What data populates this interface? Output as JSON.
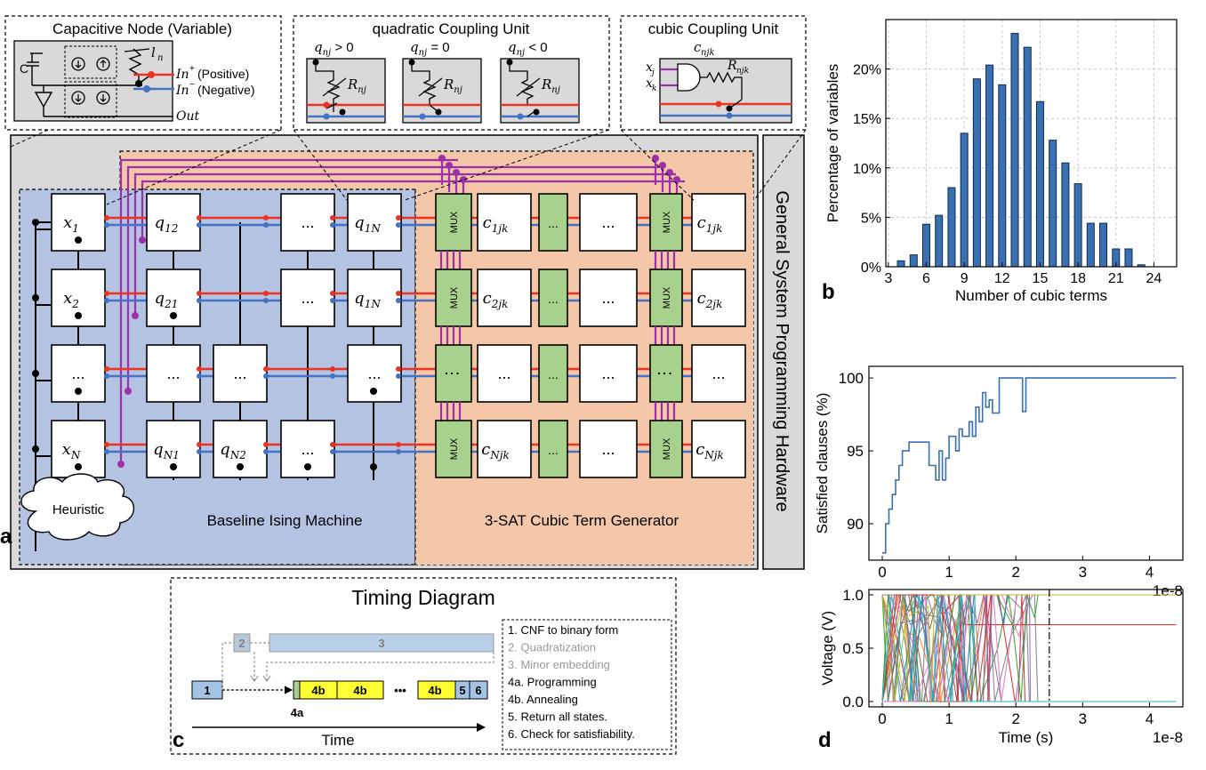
{
  "panel_a": {
    "label": "a",
    "capacitive_node": {
      "title": "Capacitive Node (Variable)",
      "cap": "C",
      "current": "l",
      "current_sub": "n",
      "in_pos": "In",
      "in_pos_sup": "+",
      "in_pos_text": "(Positive)",
      "in_neg": "In",
      "in_neg_sup": "−",
      "in_neg_text": "(Negative)",
      "out": "Out"
    },
    "quadratic_unit": {
      "title": "quadratic Coupling Unit",
      "conditions": [
        "q",
        "q",
        "q"
      ],
      "cond_sub": "nj",
      "cond_ops": [
        "> 0",
        "= 0",
        "< 0"
      ],
      "resistor": "R",
      "resistor_sub": "nj"
    },
    "cubic_unit": {
      "title": "cubic Coupling Unit",
      "coef": "c",
      "coef_sub": "njk",
      "in1": "x",
      "in1_sub": "j",
      "in2": "x",
      "in2_sub": "k",
      "resistor": "R",
      "resistor_sub": "njk"
    },
    "side_label": "General System Programming Hardware",
    "baseline_label": "Baseline Ising Machine",
    "generator_label": "3-SAT Cubic Term Generator",
    "heuristic": "Heuristic",
    "mux": "MUX",
    "ellipsis": "...",
    "rows": [
      {
        "x": "x",
        "x_sub": "1",
        "q": [
          [
            "q",
            "12"
          ],
          [
            "",
            ""
          ],
          [
            "...",
            ""
          ],
          [
            "q",
            "1N"
          ]
        ],
        "c": [
          "c",
          "1jk"
        ],
        "c_end": [
          "c",
          "1jk"
        ]
      },
      {
        "x": "x",
        "x_sub": "2",
        "q": [
          [
            "q",
            "21"
          ],
          [
            "",
            ""
          ],
          [
            "...",
            ""
          ],
          [
            "q",
            "1N"
          ]
        ],
        "c": [
          "c",
          "2jk"
        ],
        "c_end": [
          "c",
          "2jk"
        ]
      },
      {
        "x": "...",
        "x_sub": "",
        "q": [
          [
            "...",
            ""
          ],
          [
            "...",
            ""
          ],
          [
            "",
            ""
          ],
          [
            "...",
            ""
          ]
        ],
        "c": [
          "...",
          ""
        ],
        "c_end": [
          "...",
          ""
        ]
      },
      {
        "x": "x",
        "x_sub": "N",
        "q": [
          [
            "q",
            "N1"
          ],
          [
            "q",
            "N2"
          ],
          [
            "...",
            ""
          ],
          [
            "",
            ""
          ]
        ],
        "c": [
          "c",
          "Njk"
        ],
        "c_end": [
          "c",
          "Njk"
        ]
      }
    ]
  },
  "panel_b": {
    "label": "b",
    "chart_data": {
      "type": "bar",
      "xlabel": "Number of cubic terms",
      "ylabel": "Percentage of variables",
      "x": [
        4,
        5,
        6,
        7,
        8,
        9,
        10,
        11,
        12,
        13,
        14,
        15,
        16,
        17,
        18,
        19,
        20,
        21,
        22,
        23
      ],
      "values": [
        0.6,
        1.2,
        4.3,
        5.2,
        8.0,
        13.5,
        19.0,
        20.4,
        18.4,
        23.6,
        22.2,
        16.7,
        12.8,
        10.5,
        8.4,
        4.4,
        4.4,
        1.8,
        1.8,
        0.2
      ],
      "ylim": [
        0,
        25
      ],
      "xticks": [
        "3",
        "6",
        "9",
        "12",
        "15",
        "18",
        "21",
        "24"
      ],
      "yticks": [
        "0%",
        "5%",
        "10%",
        "15%",
        "20%"
      ],
      "grid": true,
      "bar_color": "#3a6fb0"
    }
  },
  "panel_c": {
    "label": "c",
    "title": "Timing Diagram",
    "time_label": "Time",
    "blocks": [
      "1",
      "2",
      "3",
      "4b",
      "4b",
      "4b",
      "5",
      "6"
    ],
    "label_4a": "4a",
    "dots": "•••",
    "legend": [
      {
        "text": "1. CNF to binary form",
        "color": "#000000"
      },
      {
        "text": "2. Quadratization",
        "color": "#9a9a9a"
      },
      {
        "text": "3. Minor embedding",
        "color": "#9a9a9a"
      },
      {
        "text": "4a. Programming",
        "color": "#000000"
      },
      {
        "text": "4b. Annealing",
        "color": "#000000"
      },
      {
        "text": "5. Return all states.",
        "color": "#000000"
      },
      {
        "text": "6. Check for satisfiability.",
        "color": "#000000"
      }
    ]
  },
  "panel_d": {
    "label": "d",
    "top": {
      "chart_data": {
        "type": "line",
        "ylabel": "Satisfied clauses (%)",
        "xlim": [
          -0.2,
          4.5
        ],
        "ylim": [
          87.5,
          100.8
        ],
        "xticks": [
          "0",
          "1",
          "2",
          "3",
          "4"
        ],
        "yticks": [
          "90",
          "95",
          "100"
        ],
        "offset_text": "1e-8",
        "series": [
          {
            "color": "#3a6fb0",
            "x": [
              0,
              0.05,
              0.05,
              0.1,
              0.1,
              0.15,
              0.15,
              0.2,
              0.2,
              0.25,
              0.25,
              0.3,
              0.3,
              0.4,
              0.4,
              0.5,
              0.5,
              0.7,
              0.7,
              0.8,
              0.8,
              0.85,
              0.85,
              0.9,
              0.9,
              0.95,
              0.95,
              1.0,
              1.0,
              1.1,
              1.1,
              1.15,
              1.15,
              1.2,
              1.2,
              1.3,
              1.3,
              1.35,
              1.35,
              1.4,
              1.4,
              1.45,
              1.45,
              1.5,
              1.5,
              1.55,
              1.55,
              1.6,
              1.6,
              1.65,
              1.65,
              1.75,
              1.75,
              1.85,
              1.85,
              2.1,
              2.1,
              2.15,
              2.15,
              4.4
            ],
            "y": [
              88,
              88,
              90,
              90,
              91,
              91,
              92,
              92,
              93,
              93,
              94,
              94,
              95,
              95,
              95.6,
              95.6,
              95.6,
              95.6,
              94,
              94,
              93,
              93,
              95,
              95,
              93,
              93,
              94.5,
              94.5,
              96,
              96,
              95,
              95,
              96.5,
              96.5,
              96,
              96,
              97,
              97,
              96,
              96,
              98,
              98,
              97,
              97,
              99,
              99,
              98,
              98,
              98.5,
              98.5,
              97.6,
              97.6,
              100,
              100,
              100,
              100,
              97.7,
              97.7,
              100,
              100
            ]
          }
        ]
      }
    },
    "bottom": {
      "chart_data": {
        "type": "line",
        "ylabel": "Voltage (V)",
        "xlabel": "Time (s)",
        "xlim": [
          -0.2,
          4.5
        ],
        "ylim": [
          -0.05,
          1.05
        ],
        "xticks": [
          "0",
          "1",
          "2",
          "3",
          "4"
        ],
        "yticks": [
          "0.0",
          "0.5",
          "1.0"
        ],
        "offset_text": "1e-8",
        "vline_x": 2.5
      }
    }
  }
}
